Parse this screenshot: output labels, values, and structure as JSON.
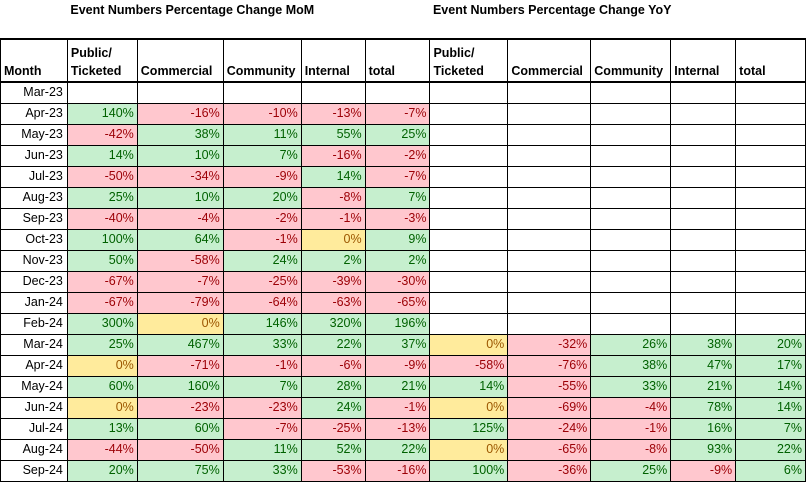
{
  "titles": {
    "mom": "Event Numbers Percentage Change MoM",
    "yoy": "Event Numbers Percentage Change YoY"
  },
  "headers": {
    "month": "Month",
    "public_l1": "Public/",
    "public_l2": "Ticketed",
    "commercial": "Commercial",
    "community": "Community",
    "internal": "Internal",
    "total": "total"
  },
  "rows": [
    {
      "month": "Mar-23",
      "mom": [
        "",
        "",
        "",
        "",
        ""
      ],
      "yoy": [
        "",
        "",
        "",
        "",
        ""
      ]
    },
    {
      "month": "Apr-23",
      "mom": [
        "140%",
        "-16%",
        "-10%",
        "-13%",
        "-7%"
      ],
      "yoy": [
        "",
        "",
        "",
        "",
        ""
      ]
    },
    {
      "month": "May-23",
      "mom": [
        "-42%",
        "38%",
        "11%",
        "55%",
        "25%"
      ],
      "yoy": [
        "",
        "",
        "",
        "",
        ""
      ]
    },
    {
      "month": "Jun-23",
      "mom": [
        "14%",
        "10%",
        "7%",
        "-16%",
        "-2%"
      ],
      "yoy": [
        "",
        "",
        "",
        "",
        ""
      ]
    },
    {
      "month": "Jul-23",
      "mom": [
        "-50%",
        "-34%",
        "-9%",
        "14%",
        "-7%"
      ],
      "yoy": [
        "",
        "",
        "",
        "",
        ""
      ]
    },
    {
      "month": "Aug-23",
      "mom": [
        "25%",
        "10%",
        "20%",
        "-8%",
        "7%"
      ],
      "yoy": [
        "",
        "",
        "",
        "",
        ""
      ]
    },
    {
      "month": "Sep-23",
      "mom": [
        "-40%",
        "-4%",
        "-2%",
        "-1%",
        "-3%"
      ],
      "yoy": [
        "",
        "",
        "",
        "",
        ""
      ]
    },
    {
      "month": "Oct-23",
      "mom": [
        "100%",
        "64%",
        "-1%",
        "0%",
        "9%"
      ],
      "yoy": [
        "",
        "",
        "",
        "",
        ""
      ]
    },
    {
      "month": "Nov-23",
      "mom": [
        "50%",
        "-58%",
        "24%",
        "2%",
        "2%"
      ],
      "yoy": [
        "",
        "",
        "",
        "",
        ""
      ]
    },
    {
      "month": "Dec-23",
      "mom": [
        "-67%",
        "-7%",
        "-25%",
        "-39%",
        "-30%"
      ],
      "yoy": [
        "",
        "",
        "",
        "",
        ""
      ]
    },
    {
      "month": "Jan-24",
      "mom": [
        "-67%",
        "-79%",
        "-64%",
        "-63%",
        "-65%"
      ],
      "yoy": [
        "",
        "",
        "",
        "",
        ""
      ]
    },
    {
      "month": "Feb-24",
      "mom": [
        "300%",
        "0%",
        "146%",
        "320%",
        "196%"
      ],
      "yoy": [
        "",
        "",
        "",
        "",
        ""
      ]
    },
    {
      "month": "Mar-24",
      "mom": [
        "25%",
        "467%",
        "33%",
        "22%",
        "37%"
      ],
      "yoy": [
        "0%",
        "-32%",
        "26%",
        "38%",
        "20%"
      ]
    },
    {
      "month": "Apr-24",
      "mom": [
        "0%",
        "-71%",
        "-1%",
        "-6%",
        "-9%"
      ],
      "yoy": [
        "-58%",
        "-76%",
        "38%",
        "47%",
        "17%"
      ]
    },
    {
      "month": "May-24",
      "mom": [
        "60%",
        "160%",
        "7%",
        "28%",
        "21%"
      ],
      "yoy": [
        "14%",
        "-55%",
        "33%",
        "21%",
        "14%"
      ]
    },
    {
      "month": "Jun-24",
      "mom": [
        "0%",
        "-23%",
        "-23%",
        "24%",
        "-1%"
      ],
      "yoy": [
        "0%",
        "-69%",
        "-4%",
        "78%",
        "14%"
      ]
    },
    {
      "month": "Jul-24",
      "mom": [
        "13%",
        "60%",
        "-7%",
        "-25%",
        "-13%"
      ],
      "yoy": [
        "125%",
        "-24%",
        "-1%",
        "16%",
        "7%"
      ]
    },
    {
      "month": "Aug-24",
      "mom": [
        "-44%",
        "-50%",
        "11%",
        "52%",
        "22%"
      ],
      "yoy": [
        "0%",
        "-65%",
        "-8%",
        "93%",
        "22%"
      ]
    },
    {
      "month": "Sep-24",
      "mom": [
        "20%",
        "75%",
        "33%",
        "-53%",
        "-16%"
      ],
      "yoy": [
        "100%",
        "-36%",
        "25%",
        "-9%",
        "6%"
      ]
    }
  ],
  "colors": {
    "positive_fill": "#c6efce",
    "positive_text": "#006100",
    "negative_fill": "#ffc7ce",
    "negative_text": "#9c0006",
    "zero_fill": "#ffeb9c",
    "zero_text": "#9c5700"
  }
}
